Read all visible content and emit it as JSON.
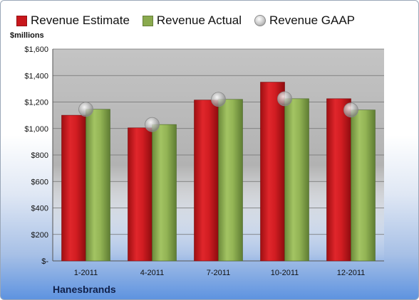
{
  "legend": {
    "items": [
      {
        "label": "Revenue Estimate",
        "color": "#c8171c",
        "shape": "square"
      },
      {
        "label": "Revenue Actual",
        "color": "#8aaa4e",
        "shape": "square"
      },
      {
        "label": "Revenue GAAP",
        "color": "#b9b9b9",
        "shape": "circle"
      }
    ]
  },
  "units_label": "$millions",
  "company": "Hanesbrands",
  "chart_data": {
    "type": "bar",
    "categories": [
      "1-2011",
      "4-2011",
      "7-2011",
      "10-2011",
      "12-2011"
    ],
    "series": [
      {
        "name": "Revenue Estimate",
        "type": "bar",
        "color": "#c8171c",
        "values": [
          1100,
          1005,
          1215,
          1350,
          1225
        ]
      },
      {
        "name": "Revenue Actual",
        "type": "bar",
        "color": "#8aaa4e",
        "values": [
          1145,
          1030,
          1220,
          1225,
          1140
        ]
      },
      {
        "name": "Revenue GAAP",
        "type": "marker",
        "color": "#b9b9b9",
        "values": [
          1145,
          1030,
          1220,
          1225,
          1140
        ]
      }
    ],
    "ylabel": "$millions",
    "ylim": [
      0,
      1600
    ],
    "yticks": [
      0,
      200,
      400,
      600,
      800,
      1000,
      1200,
      1400,
      1600
    ],
    "ytick_labels": [
      "$-",
      "$200",
      "$400",
      "$600",
      "$800",
      "$1,000",
      "$1,200",
      "$1,400",
      "$1,600"
    ],
    "grid": true,
    "legend_position": "top"
  }
}
